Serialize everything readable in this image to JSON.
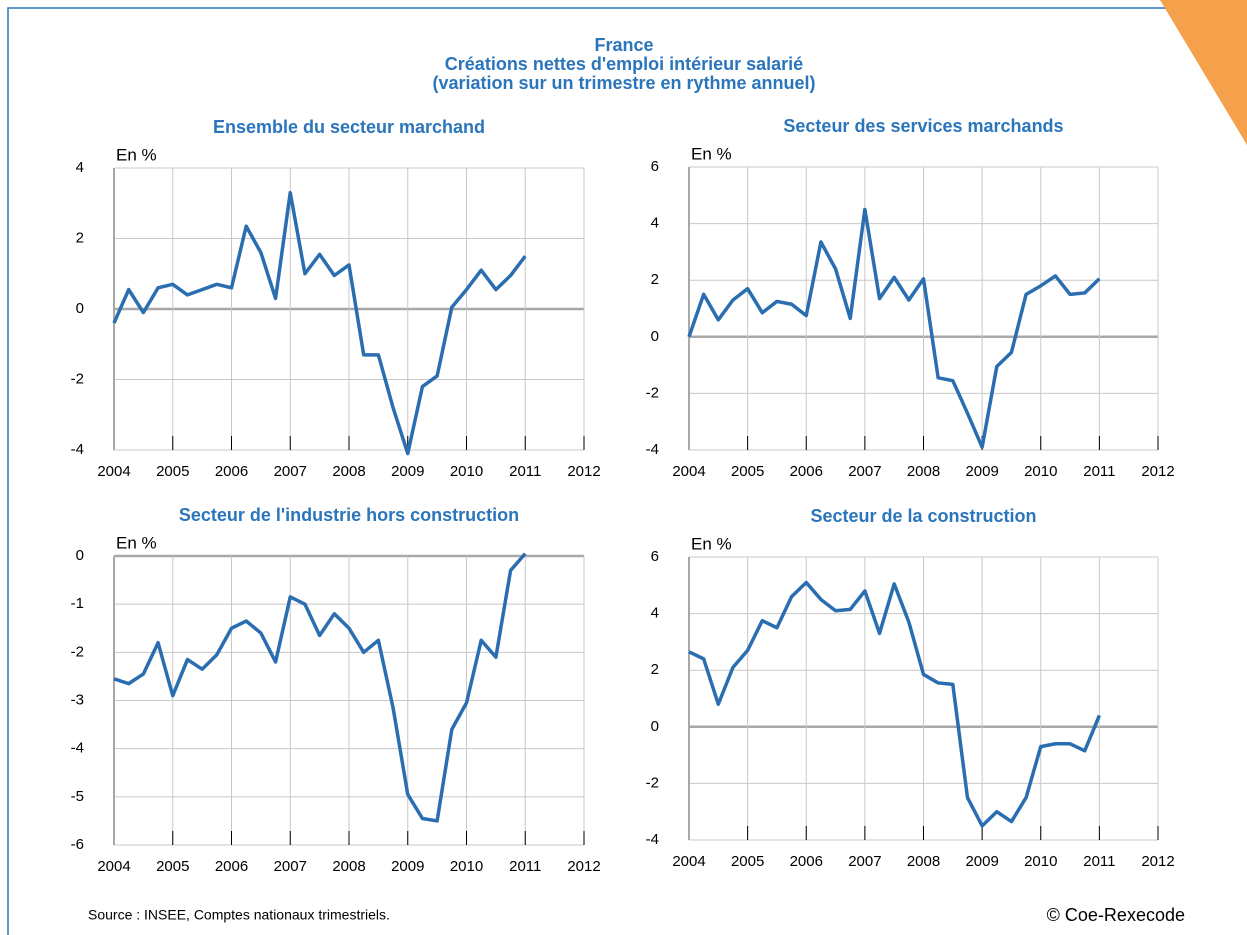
{
  "header": [
    "France",
    "Créations nettes d'emploi intérieur salarié",
    "(variation sur un trimestre en rythme annuel)"
  ],
  "source": "Source : INSEE, Comptes nationaux trimestriels.",
  "copyright": "© Coe-Rexecode",
  "chart_data": [
    {
      "type": "line",
      "title": "Ensemble du secteur marchand",
      "y_label": "En %",
      "color": "#2a6db0",
      "grid": true,
      "x": [
        2004,
        2004.25,
        2004.5,
        2004.75,
        2005,
        2005.25,
        2005.5,
        2005.75,
        2006,
        2006.25,
        2006.5,
        2006.75,
        2007,
        2007.25,
        2007.5,
        2007.75,
        2008,
        2008.25,
        2008.5,
        2008.75,
        2009,
        2009.25,
        2009.5,
        2009.75,
        2010,
        2010.25,
        2010.5,
        2010.75,
        2011
      ],
      "values": [
        -0.4,
        0.55,
        -0.1,
        0.6,
        0.7,
        0.4,
        0.55,
        0.7,
        0.6,
        2.35,
        1.6,
        0.3,
        3.3,
        1.0,
        1.55,
        0.95,
        1.25,
        -1.3,
        -1.3,
        -2.8,
        -4.1,
        -2.2,
        -1.9,
        0.05,
        0.55,
        1.1,
        0.55,
        0.95,
        1.5
      ],
      "xlim": [
        2004,
        2012
      ],
      "xticks": [
        2004,
        2005,
        2006,
        2007,
        2008,
        2009,
        2010,
        2011,
        2012
      ],
      "ylim": [
        -4,
        4
      ],
      "yticks": [
        -4,
        -2,
        0,
        2,
        4
      ]
    },
    {
      "type": "line",
      "title": "Secteur des services marchands",
      "y_label": "En %",
      "color": "#2a6db0",
      "grid": true,
      "x": [
        2004,
        2004.25,
        2004.5,
        2004.75,
        2005,
        2005.25,
        2005.5,
        2005.75,
        2006,
        2006.25,
        2006.5,
        2006.75,
        2007,
        2007.25,
        2007.5,
        2007.75,
        2008,
        2008.25,
        2008.5,
        2008.75,
        2009,
        2009.25,
        2009.5,
        2009.75,
        2010,
        2010.25,
        2010.5,
        2010.75,
        2011
      ],
      "values": [
        0,
        1.5,
        0.6,
        1.3,
        1.7,
        0.85,
        1.25,
        1.15,
        0.75,
        3.35,
        2.4,
        0.65,
        4.5,
        1.35,
        2.1,
        1.3,
        2.05,
        -1.45,
        -1.55,
        -2.7,
        -3.9,
        -1.05,
        -0.55,
        1.5,
        1.8,
        2.15,
        1.5,
        1.55,
        2.05
      ],
      "xlim": [
        2004,
        2012
      ],
      "xticks": [
        2004,
        2005,
        2006,
        2007,
        2008,
        2009,
        2010,
        2011,
        2012
      ],
      "ylim": [
        -4,
        6
      ],
      "yticks": [
        -4,
        -2,
        0,
        2,
        4,
        6
      ]
    },
    {
      "type": "line",
      "title": "Secteur de l'industrie hors construction",
      "y_label": "En %",
      "color": "#2a6db0",
      "grid": true,
      "x": [
        2004,
        2004.25,
        2004.5,
        2004.75,
        2005,
        2005.25,
        2005.5,
        2005.75,
        2006,
        2006.25,
        2006.5,
        2006.75,
        2007,
        2007.25,
        2007.5,
        2007.75,
        2008,
        2008.25,
        2008.5,
        2008.75,
        2009,
        2009.25,
        2009.5,
        2009.75,
        2010,
        2010.25,
        2010.5,
        2010.75,
        2011
      ],
      "values": [
        -2.55,
        -2.65,
        -2.45,
        -1.8,
        -2.9,
        -2.15,
        -2.35,
        -2.05,
        -1.5,
        -1.35,
        -1.6,
        -2.2,
        -0.85,
        -1.0,
        -1.65,
        -1.2,
        -1.5,
        -2.0,
        -1.75,
        -3.15,
        -4.95,
        -5.45,
        -5.5,
        -3.6,
        -3.05,
        -1.75,
        -2.1,
        -0.3,
        0.05
      ],
      "xlim": [
        2004,
        2012
      ],
      "xticks": [
        2004,
        2005,
        2006,
        2007,
        2008,
        2009,
        2010,
        2011,
        2012
      ],
      "ylim": [
        -6,
        0
      ],
      "yticks": [
        -6,
        -5,
        -4,
        -3,
        -2,
        -1,
        0
      ]
    },
    {
      "type": "line",
      "title": "Secteur de la construction",
      "y_label": "En %",
      "color": "#2a6db0",
      "grid": true,
      "x": [
        2004,
        2004.25,
        2004.5,
        2004.75,
        2005,
        2005.25,
        2005.5,
        2005.75,
        2006,
        2006.25,
        2006.5,
        2006.75,
        2007,
        2007.25,
        2007.5,
        2007.75,
        2008,
        2008.25,
        2008.5,
        2008.75,
        2009,
        2009.25,
        2009.5,
        2009.75,
        2010,
        2010.25,
        2010.5,
        2010.75,
        2011
      ],
      "values": [
        2.65,
        2.4,
        0.8,
        2.1,
        2.7,
        3.75,
        3.5,
        4.6,
        5.1,
        4.5,
        4.1,
        4.15,
        4.8,
        3.3,
        5.05,
        3.7,
        1.85,
        1.55,
        1.5,
        -2.5,
        -3.5,
        -3.0,
        -3.35,
        -2.5,
        -0.7,
        -0.6,
        -0.6,
        -0.85,
        0.4
      ],
      "xlim": [
        2004,
        2012
      ],
      "xticks": [
        2004,
        2005,
        2006,
        2007,
        2008,
        2009,
        2010,
        2011,
        2012
      ],
      "ylim": [
        -4,
        6
      ],
      "yticks": [
        -4,
        -2,
        0,
        2,
        4,
        6
      ]
    }
  ]
}
